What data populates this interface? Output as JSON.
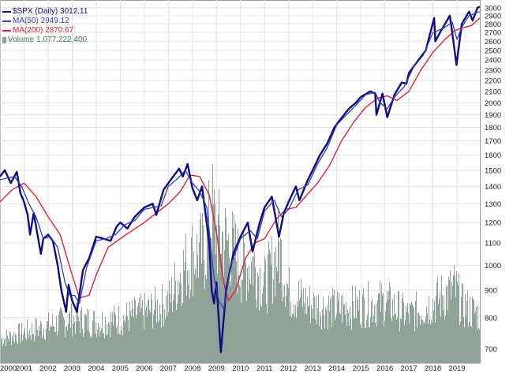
{
  "legend": {
    "price_label": "$SPX (Daily) 3012.11",
    "ma50_label": "MA(50) 2949.12",
    "ma200_label": "MA(200) 2870.67",
    "volume_label": "Volume 1,077,222,400"
  },
  "colors": {
    "price": "#0d0d80",
    "ma50": "#2f3fbf",
    "ma200": "#e0213a",
    "volume": "#8fa399",
    "grid": "#e2e2e2"
  },
  "chart_data": {
    "type": "line",
    "y_scale": "log",
    "ylim": [
      660,
      3100
    ],
    "xlim": [
      2000.0,
      2019.95
    ],
    "x_ticks": [
      2000,
      2001,
      2002,
      2003,
      2004,
      2005,
      2006,
      2007,
      2008,
      2009,
      2010,
      2011,
      2012,
      2013,
      2014,
      2015,
      2016,
      2017,
      2018,
      2019
    ],
    "x_tick_labels": [
      "2000",
      "2001",
      "2002",
      "2003",
      "2004",
      "2005",
      "2006",
      "2007",
      "2008",
      "2009",
      "2010",
      "2011",
      "2012",
      "2013",
      "2014",
      "2015",
      "2016",
      "2017",
      "2018",
      "2019"
    ],
    "y_ticks": [
      700,
      800,
      900,
      1000,
      1100,
      1200,
      1300,
      1400,
      1500,
      1600,
      1700,
      1800,
      1900,
      2000,
      2100,
      2200,
      2300,
      2400,
      2500,
      2600,
      2700,
      2800,
      2900,
      3000
    ],
    "y_tick_labels": [
      "700",
      "800",
      "900",
      "1000",
      "1100",
      "1200",
      "1300",
      "1400",
      "1500",
      "1600",
      "1700",
      "1800",
      "1900",
      "2000",
      "2100",
      "2200",
      "2300",
      "2400",
      "2500",
      "2600",
      "2700",
      "2800",
      "2900",
      "3000"
    ],
    "grid": true,
    "legend_position": "top-left",
    "series": [
      {
        "name": "$SPX (Daily)",
        "x": [
          2000.0,
          2000.2,
          2000.45,
          2000.7,
          2000.85,
          2001.0,
          2001.15,
          2001.25,
          2001.4,
          2001.7,
          2001.8,
          2002.0,
          2002.2,
          2002.4,
          2002.55,
          2002.75,
          2002.85,
          2003.0,
          2003.2,
          2003.45,
          2003.7,
          2004.0,
          2004.3,
          2004.6,
          2004.85,
          2005.0,
          2005.3,
          2005.6,
          2006.0,
          2006.35,
          2006.5,
          2006.8,
          2007.0,
          2007.15,
          2007.45,
          2007.6,
          2007.8,
          2008.0,
          2008.2,
          2008.4,
          2008.7,
          2008.8,
          2008.9,
          2009.0,
          2009.18,
          2009.4,
          2009.7,
          2010.0,
          2010.3,
          2010.5,
          2010.8,
          2011.0,
          2011.3,
          2011.6,
          2011.8,
          2012.0,
          2012.3,
          2012.45,
          2012.8,
          2013.0,
          2013.3,
          2013.6,
          2013.9,
          2014.1,
          2014.5,
          2014.8,
          2015.0,
          2015.4,
          2015.6,
          2015.65,
          2015.9,
          2016.1,
          2016.4,
          2016.7,
          2016.9,
          2017.0,
          2017.4,
          2017.7,
          2018.05,
          2018.1,
          2018.3,
          2018.7,
          2018.8,
          2018.98,
          2019.2,
          2019.5,
          2019.65,
          2019.85,
          2019.95
        ],
        "values": [
          1460,
          1500,
          1420,
          1490,
          1360,
          1310,
          1240,
          1140,
          1250,
          1050,
          1120,
          1140,
          1110,
          1000,
          900,
          820,
          920,
          860,
          820,
          980,
          1030,
          1130,
          1120,
          1110,
          1180,
          1200,
          1170,
          1230,
          1280,
          1300,
          1240,
          1380,
          1420,
          1450,
          1510,
          1460,
          1540,
          1390,
          1320,
          1400,
          1100,
          900,
          850,
          930,
          690,
          900,
          1050,
          1130,
          1200,
          1060,
          1200,
          1280,
          1340,
          1130,
          1250,
          1310,
          1400,
          1320,
          1440,
          1500,
          1600,
          1680,
          1800,
          1850,
          1950,
          2000,
          2050,
          2100,
          2080,
          1900,
          2080,
          1880,
          2070,
          2180,
          2170,
          2270,
          2400,
          2500,
          2870,
          2600,
          2700,
          2900,
          2700,
          2350,
          2800,
          2950,
          2840,
          3000,
          3012
        ]
      },
      {
        "name": "MA(50)",
        "x": [
          2000.0,
          2000.3,
          2000.6,
          2000.9,
          2001.2,
          2001.5,
          2001.8,
          2002.1,
          2002.4,
          2002.7,
          2002.9,
          2003.1,
          2003.3,
          2003.6,
          2004.0,
          2004.4,
          2004.8,
          2005.2,
          2005.6,
          2006.0,
          2006.4,
          2006.7,
          2007.0,
          2007.4,
          2007.7,
          2008.0,
          2008.3,
          2008.6,
          2008.9,
          2009.1,
          2009.3,
          2009.6,
          2010.0,
          2010.4,
          2010.7,
          2011.0,
          2011.4,
          2011.7,
          2012.0,
          2012.4,
          2012.8,
          2013.2,
          2013.6,
          2014.0,
          2014.4,
          2014.8,
          2015.2,
          2015.6,
          2015.8,
          2016.1,
          2016.4,
          2016.8,
          2017.2,
          2017.6,
          2018.0,
          2018.2,
          2018.5,
          2018.8,
          2019.0,
          2019.2,
          2019.5,
          2019.95
        ],
        "values": [
          1440,
          1450,
          1460,
          1400,
          1300,
          1230,
          1120,
          1130,
          1080,
          930,
          880,
          880,
          850,
          990,
          1110,
          1120,
          1140,
          1190,
          1210,
          1270,
          1280,
          1290,
          1400,
          1450,
          1500,
          1420,
          1370,
          1280,
          950,
          860,
          830,
          1000,
          1120,
          1160,
          1120,
          1260,
          1320,
          1230,
          1270,
          1380,
          1410,
          1540,
          1650,
          1820,
          1900,
          1980,
          2070,
          2090,
          2000,
          1950,
          2050,
          2140,
          2330,
          2450,
          2700,
          2720,
          2760,
          2820,
          2620,
          2760,
          2900,
          2949
        ]
      },
      {
        "name": "MA(200)",
        "x": [
          2000.0,
          2000.5,
          2001.0,
          2001.5,
          2002.0,
          2002.5,
          2003.0,
          2003.3,
          2003.7,
          2004.0,
          2004.5,
          2005.0,
          2005.5,
          2006.0,
          2006.5,
          2007.0,
          2007.5,
          2007.9,
          2008.3,
          2008.7,
          2009.0,
          2009.3,
          2009.5,
          2009.8,
          2010.2,
          2010.6,
          2011.0,
          2011.5,
          2011.9,
          2012.3,
          2012.7,
          2013.2,
          2013.7,
          2014.2,
          2014.7,
          2015.2,
          2015.7,
          2016.1,
          2016.5,
          2017.0,
          2017.5,
          2018.0,
          2018.5,
          2018.9,
          2019.2,
          2019.6,
          2019.95
        ],
        "values": [
          1310,
          1380,
          1420,
          1340,
          1230,
          1140,
          960,
          870,
          880,
          960,
          1080,
          1120,
          1160,
          1200,
          1250,
          1300,
          1370,
          1470,
          1460,
          1350,
          1150,
          930,
          860,
          900,
          1030,
          1100,
          1120,
          1220,
          1270,
          1280,
          1340,
          1420,
          1530,
          1700,
          1840,
          1960,
          2040,
          2060,
          2020,
          2100,
          2300,
          2480,
          2620,
          2720,
          2750,
          2780,
          2870
        ]
      }
    ],
    "volume": {
      "name": "Volume",
      "x": [
        2000.0,
        2001.0,
        2002.0,
        2003.0,
        2004.0,
        2005.0,
        2006.0,
        2007.0,
        2007.5,
        2008.0,
        2008.5,
        2008.8,
        2009.0,
        2009.3,
        2009.8,
        2010.0,
        2010.5,
        2011.0,
        2011.6,
        2012.0,
        2013.0,
        2014.0,
        2015.0,
        2016.0,
        2017.0,
        2018.0,
        2018.9,
        2019.2,
        2019.95
      ],
      "relative": [
        0.07,
        0.09,
        0.11,
        0.13,
        0.12,
        0.13,
        0.15,
        0.18,
        0.27,
        0.32,
        0.33,
        0.45,
        0.38,
        0.37,
        0.32,
        0.28,
        0.3,
        0.23,
        0.34,
        0.21,
        0.17,
        0.16,
        0.17,
        0.18,
        0.14,
        0.18,
        0.22,
        0.17,
        0.14
      ]
    }
  }
}
